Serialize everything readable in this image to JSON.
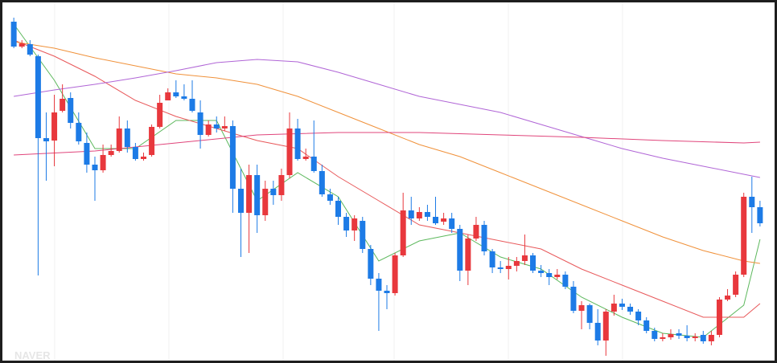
{
  "chart_data": {
    "type": "candlestick",
    "watermark": "NAVER",
    "ylim": [
      8,
      460
    ],
    "xlim": [
      -1.7,
      93.5
    ],
    "up_color": "#e8383d",
    "down_color": "#1d7be6",
    "open": [
      433,
      402,
      405,
      390,
      288,
      285,
      322,
      338,
      307,
      282,
      255,
      248,
      267,
      272,
      300,
      277,
      262,
      267,
      302,
      335,
      345,
      340,
      337,
      320,
      292,
      305,
      300,
      303,
      225,
      195,
      242,
      192,
      225,
      217,
      242,
      300,
      262,
      265,
      247,
      218,
      210,
      190,
      173,
      185,
      150,
      113,
      98,
      95,
      142,
      198,
      188,
      196,
      190,
      184,
      188,
      175,
      123,
      163,
      180,
      147,
      127,
      125,
      129,
      135,
      142,
      123,
      120,
      115,
      118,
      103,
      73,
      80,
      58,
      36,
      72,
      82,
      78,
      72,
      61,
      48,
      38,
      40,
      45,
      42,
      39,
      43,
      35,
      43,
      87,
      93,
      118,
      215,
      202
    ],
    "close": [
      402,
      406,
      392,
      288,
      284,
      320,
      337,
      307,
      284,
      255,
      248,
      267,
      272,
      300,
      277,
      262,
      265,
      302,
      332,
      345,
      340,
      337,
      322,
      292,
      305,
      300,
      303,
      225,
      195,
      242,
      192,
      225,
      217,
      242,
      300,
      262,
      265,
      247,
      218,
      210,
      190,
      173,
      188,
      150,
      113,
      98,
      95,
      142,
      198,
      188,
      196,
      190,
      182,
      188,
      175,
      123,
      163,
      180,
      147,
      127,
      125,
      129,
      135,
      142,
      123,
      120,
      115,
      118,
      103,
      73,
      80,
      58,
      36,
      72,
      82,
      78,
      72,
      61,
      48,
      38,
      40,
      44,
      42,
      39,
      41,
      35,
      43,
      87,
      92,
      118,
      215,
      202,
      182
    ],
    "high": [
      438,
      410,
      410,
      392,
      320,
      342,
      355,
      345,
      320,
      295,
      265,
      280,
      280,
      315,
      310,
      282,
      270,
      305,
      342,
      350,
      360,
      355,
      360,
      335,
      310,
      315,
      315,
      310,
      250,
      255,
      255,
      235,
      235,
      250,
      320,
      312,
      275,
      310,
      255,
      225,
      215,
      195,
      192,
      190,
      155,
      120,
      105,
      145,
      220,
      215,
      202,
      205,
      215,
      195,
      195,
      180,
      168,
      190,
      185,
      150,
      135,
      140,
      140,
      168,
      145,
      130,
      125,
      125,
      122,
      110,
      85,
      82,
      75,
      75,
      93,
      88,
      82,
      75,
      65,
      52,
      45,
      50,
      50,
      55,
      45,
      48,
      48,
      90,
      100,
      122,
      220,
      240,
      210
    ],
    "low": [
      400,
      400,
      390,
      117,
      235,
      253,
      320,
      300,
      280,
      245,
      210,
      245,
      265,
      270,
      270,
      260,
      260,
      265,
      300,
      335,
      338,
      335,
      320,
      275,
      290,
      295,
      297,
      195,
      140,
      145,
      170,
      185,
      205,
      210,
      238,
      260,
      260,
      245,
      215,
      205,
      180,
      165,
      160,
      145,
      105,
      48,
      75,
      92,
      140,
      180,
      185,
      185,
      180,
      180,
      170,
      110,
      105,
      160,
      142,
      120,
      120,
      112,
      122,
      130,
      120,
      115,
      105,
      112,
      100,
      70,
      50,
      50,
      30,
      17,
      67,
      74,
      68,
      55,
      45,
      35,
      35,
      37,
      38,
      35,
      35,
      32,
      30,
      40,
      85,
      90,
      115,
      170,
      178
    ],
    "series": [
      {
        "color": "#5cb85c",
        "x": [
          0,
          5,
          10,
          15,
          20,
          25,
          30,
          35,
          40,
          45,
          50,
          55,
          60,
          65,
          70,
          75,
          80,
          85,
          90,
          92
        ],
        "values": [
          430,
          360,
          275,
          275,
          310,
          310,
          210,
          245,
          215,
          135,
          160,
          170,
          140,
          125,
          90,
          65,
          45,
          40,
          80,
          162
        ]
      },
      {
        "color": "#e8585a",
        "x": [
          0,
          5,
          10,
          15,
          20,
          25,
          30,
          35,
          40,
          45,
          50,
          55,
          60,
          65,
          70,
          75,
          80,
          85,
          90,
          92
        ],
        "values": [
          410,
          390,
          365,
          335,
          315,
          300,
          285,
          275,
          240,
          210,
          180,
          170,
          160,
          150,
          125,
          105,
          85,
          65,
          65,
          82
        ]
      },
      {
        "color": "#f0913a",
        "x": [
          0,
          5,
          10,
          15,
          20,
          25,
          30,
          35,
          40,
          45,
          50,
          55,
          60,
          65,
          70,
          75,
          80,
          85,
          90,
          92
        ],
        "values": [
          408,
          400,
          388,
          378,
          368,
          363,
          355,
          340,
          320,
          300,
          280,
          265,
          245,
          225,
          205,
          185,
          165,
          148,
          135,
          132
        ]
      },
      {
        "color": "#b065d6",
        "x": [
          0,
          5,
          10,
          15,
          20,
          25,
          30,
          35,
          40,
          45,
          50,
          55,
          60,
          65,
          70,
          75,
          80,
          85,
          90,
          92
        ],
        "values": [
          340,
          348,
          355,
          363,
          372,
          382,
          386,
          383,
          370,
          355,
          340,
          330,
          320,
          305,
          290,
          275,
          263,
          253,
          243,
          239
        ]
      },
      {
        "color": "#e0457b",
        "x": [
          0,
          10,
          20,
          30,
          40,
          50,
          60,
          70,
          80,
          90,
          92
        ],
        "values": [
          267,
          272,
          282,
          292,
          295,
          295,
          292,
          289,
          285,
          282,
          283
        ]
      }
    ]
  }
}
